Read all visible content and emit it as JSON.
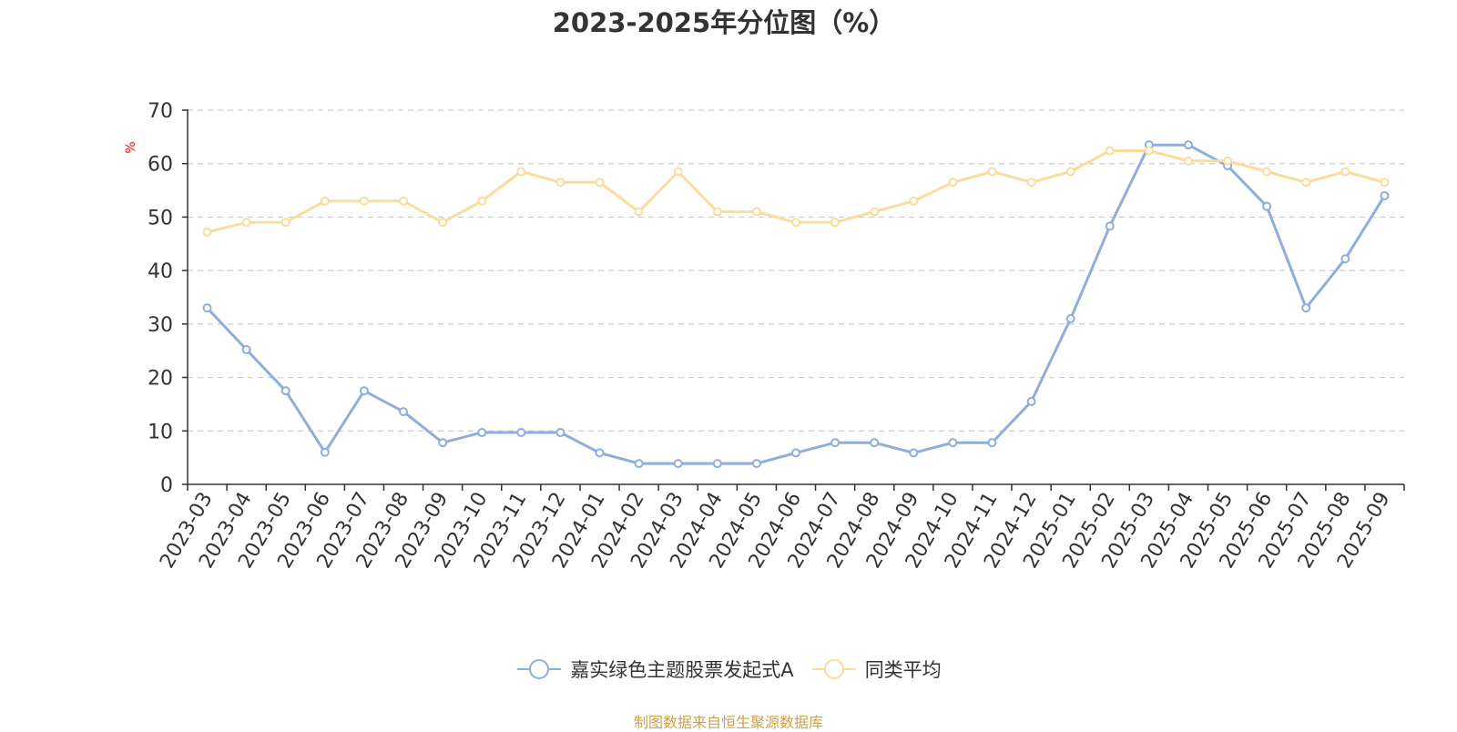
{
  "chart_data": {
    "type": "line",
    "title": "2023-2025年分位图（%）",
    "ylabel": "%",
    "xlabel": "",
    "ylim": [
      0,
      70
    ],
    "yticks": [
      0,
      10,
      20,
      30,
      40,
      50,
      60,
      70
    ],
    "grid": true,
    "legend_position": "bottom-center",
    "categories": [
      "2023-03",
      "2023-04",
      "2023-05",
      "2023-06",
      "2023-07",
      "2023-08",
      "2023-09",
      "2023-10",
      "2023-11",
      "2023-12",
      "2024-01",
      "2024-02",
      "2024-03",
      "2024-04",
      "2024-05",
      "2024-06",
      "2024-07",
      "2024-08",
      "2024-09",
      "2024-10",
      "2024-11",
      "2024-12",
      "2025-01",
      "2025-02",
      "2025-03",
      "2025-04",
      "2025-05",
      "2025-06",
      "2025-07",
      "2025-08",
      "2025-09"
    ],
    "series": [
      {
        "name": "嘉实绿色主题股票发起式A",
        "color": "#8eaedb",
        "values": [
          33,
          25.2,
          17.5,
          6,
          17.5,
          13.6,
          7.8,
          9.7,
          9.7,
          9.7,
          5.9,
          3.9,
          3.9,
          3.9,
          3.9,
          5.9,
          7.8,
          7.8,
          5.9,
          7.8,
          7.8,
          15.5,
          31,
          48.3,
          63.5,
          63.5,
          59.6,
          52,
          33,
          42.2,
          54
        ]
      },
      {
        "name": "同类平均",
        "color": "#fbdc9d",
        "values": [
          47.2,
          49,
          49,
          53,
          53,
          53,
          49,
          53,
          58.5,
          56.5,
          56.5,
          51,
          58.5,
          51,
          51,
          49,
          49,
          51,
          53,
          56.5,
          58.5,
          56.5,
          58.5,
          62.4,
          62.4,
          60.5,
          60.5,
          58.5,
          56.5,
          58.5,
          56.5
        ]
      }
    ]
  },
  "source_note": "制图数据来自恒生聚源数据库"
}
